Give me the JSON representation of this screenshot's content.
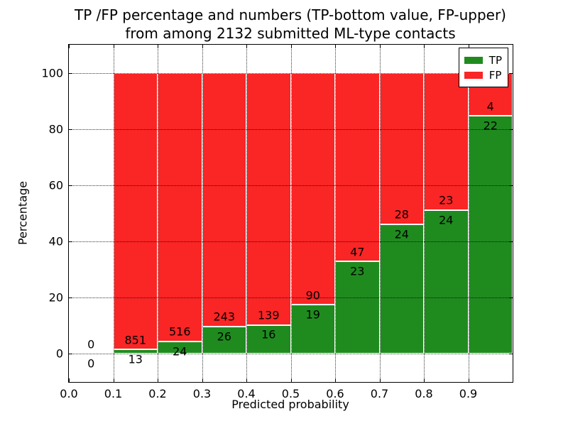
{
  "figure": {
    "title_line1": "TP /FP percentage and numbers (TP-bottom value, FP-upper)",
    "title_line2": "from among 2132 submitted ML-type contacts",
    "xlabel": "Predicted probability",
    "ylabel": "Percentage",
    "legend_items": [
      {
        "label": "TP",
        "color": "#1f8b1f"
      },
      {
        "label": "FP",
        "color": "#fa2525"
      }
    ],
    "x_tick_labels": [
      "0.0",
      "0.1",
      "0.2",
      "0.3",
      "0.4",
      "0.5",
      "0.6",
      "0.7",
      "0.8",
      "0.9"
    ],
    "y_tick_labels": [
      "0",
      "20",
      "40",
      "60",
      "80",
      "100"
    ]
  },
  "chart_data": {
    "type": "bar",
    "stacked": true,
    "normalized": "each bin stacked to 100%",
    "title": "TP /FP percentage and numbers (TP-bottom value, FP-upper) from among 2132 submitted ML-type contacts",
    "xlabel": "Predicted probability",
    "ylabel": "Percentage",
    "xlim": [
      0.0,
      1.0
    ],
    "ylim": [
      -10,
      110
    ],
    "grid": true,
    "legend_position": "upper right",
    "bin_edges": [
      0.0,
      0.1,
      0.2,
      0.3,
      0.4,
      0.5,
      0.6,
      0.7,
      0.8,
      0.9,
      1.0
    ],
    "categories": [
      "0.0-0.1",
      "0.1-0.2",
      "0.2-0.3",
      "0.3-0.4",
      "0.4-0.5",
      "0.5-0.6",
      "0.6-0.7",
      "0.7-0.8",
      "0.8-0.9",
      "0.9-1.0"
    ],
    "series": [
      {
        "name": "TP",
        "color": "#1f8b1f",
        "counts": [
          0,
          13,
          24,
          26,
          16,
          19,
          23,
          24,
          24,
          22
        ],
        "percent": [
          null,
          1.5,
          4.4,
          9.7,
          10.3,
          17.4,
          32.9,
          46.2,
          51.1,
          84.6
        ]
      },
      {
        "name": "FP",
        "color": "#fa2525",
        "counts": [
          0,
          851,
          516,
          243,
          139,
          90,
          47,
          28,
          23,
          4
        ],
        "percent": [
          null,
          98.5,
          95.6,
          90.3,
          89.7,
          82.6,
          67.1,
          53.8,
          48.9,
          15.4
        ]
      }
    ],
    "total_contacts": 2132,
    "y_ticks": [
      0,
      20,
      40,
      60,
      80,
      100
    ],
    "x_ticks": [
      0.0,
      0.1,
      0.2,
      0.3,
      0.4,
      0.5,
      0.6,
      0.7,
      0.8,
      0.9
    ]
  }
}
